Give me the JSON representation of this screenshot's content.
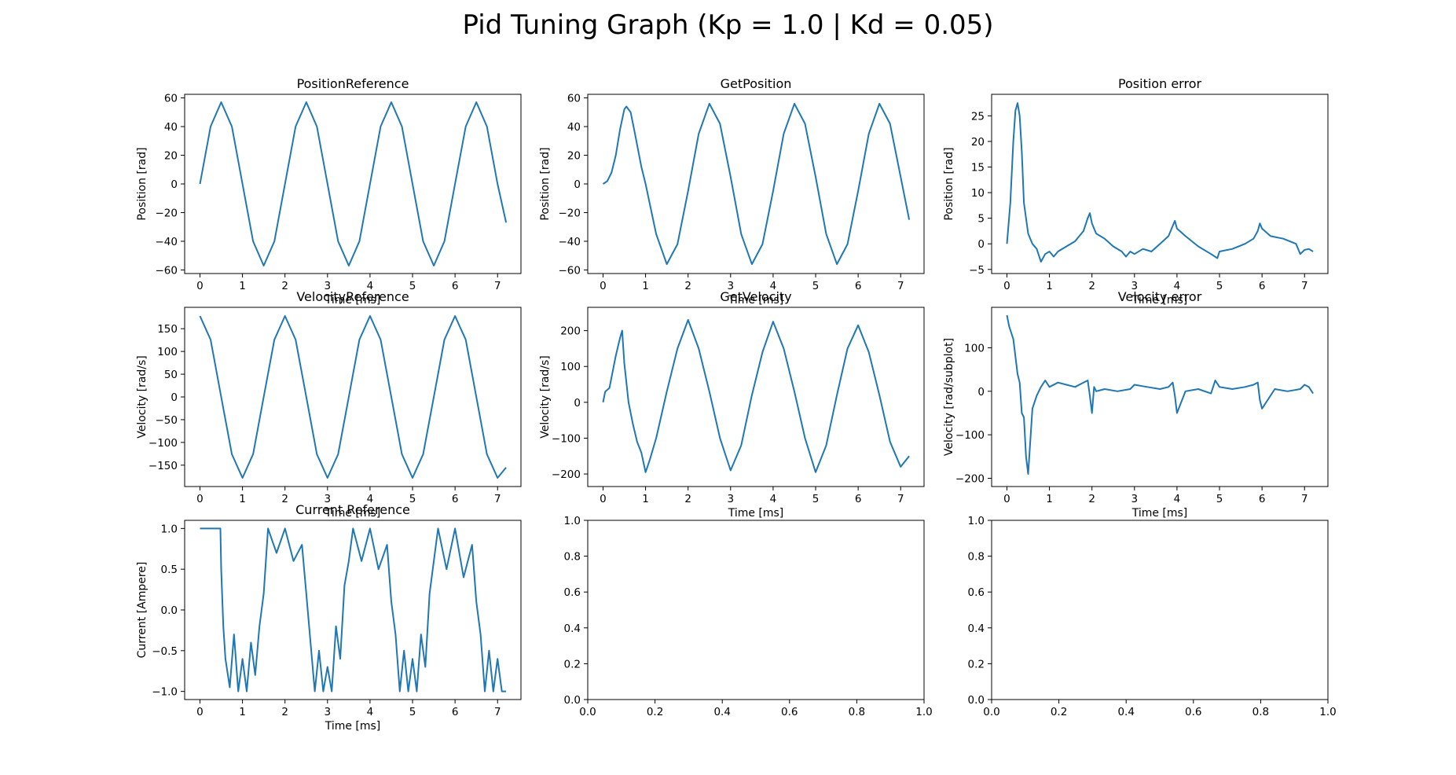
{
  "figure": {
    "title": "Pid Tuning Graph (Kp = 1.0 | Kd = 0.05)",
    "line_color": "#1f77b4"
  },
  "chart_data": [
    {
      "type": "line",
      "title": "PositionReference",
      "xlabel": "Time [ms]",
      "ylabel": "Position [rad]",
      "xlim": [
        -0.36,
        7.55
      ],
      "ylim": [
        -62.5,
        62.5
      ],
      "xticks": [
        0,
        1,
        2,
        3,
        4,
        5,
        6,
        7
      ],
      "yticks": [
        -60,
        -40,
        -20,
        0,
        20,
        40,
        60
      ],
      "series": [
        {
          "x": [
            0,
            0.25,
            0.5,
            0.75,
            1.0,
            1.25,
            1.5,
            1.75,
            2.0,
            2.25,
            2.5,
            2.75,
            3.0,
            3.25,
            3.5,
            3.75,
            4.0,
            4.25,
            4.5,
            4.75,
            5.0,
            5.25,
            5.5,
            5.75,
            6.0,
            6.25,
            6.5,
            6.75,
            7.0,
            7.2
          ],
          "y": [
            0,
            40,
            57,
            40,
            0,
            -40,
            -57,
            -40,
            0,
            40,
            57,
            40,
            0,
            -40,
            -57,
            -40,
            0,
            40,
            57,
            40,
            0,
            -40,
            -57,
            -40,
            0,
            40,
            57,
            40,
            0,
            -27
          ]
        }
      ]
    },
    {
      "type": "line",
      "title": "GetPosition",
      "xlabel": "Time [ms]",
      "ylabel": "Position [rad]",
      "xlim": [
        -0.36,
        7.55
      ],
      "ylim": [
        -62.5,
        62.5
      ],
      "xticks": [
        0,
        1,
        2,
        3,
        4,
        5,
        6,
        7
      ],
      "yticks": [
        -60,
        -40,
        -20,
        0,
        20,
        40,
        60
      ],
      "series": [
        {
          "x": [
            0,
            0.1,
            0.2,
            0.3,
            0.4,
            0.5,
            0.55,
            0.65,
            0.75,
            0.9,
            1.0,
            1.25,
            1.5,
            1.75,
            2.0,
            2.25,
            2.5,
            2.75,
            3.0,
            3.25,
            3.5,
            3.75,
            4.0,
            4.25,
            4.5,
            4.75,
            5.0,
            5.25,
            5.5,
            5.75,
            6.0,
            6.25,
            6.5,
            6.75,
            7.0,
            7.2
          ],
          "y": [
            0,
            2,
            8,
            20,
            38,
            52,
            54,
            50,
            35,
            12,
            0,
            -35,
            -56,
            -42,
            -5,
            35,
            56,
            42,
            5,
            -35,
            -56,
            -42,
            -5,
            35,
            56,
            42,
            5,
            -35,
            -56,
            -42,
            -5,
            35,
            56,
            42,
            5,
            -25
          ]
        }
      ]
    },
    {
      "type": "line",
      "title": "Position error",
      "xlabel": "Time [ms]",
      "ylabel": "Position [rad]",
      "xlim": [
        -0.36,
        7.55
      ],
      "ylim": [
        -5.8,
        29.2
      ],
      "xticks": [
        0,
        1,
        2,
        3,
        4,
        5,
        6,
        7
      ],
      "yticks": [
        -5,
        0,
        5,
        10,
        15,
        20,
        25
      ],
      "series": [
        {
          "x": [
            0,
            0.08,
            0.15,
            0.2,
            0.25,
            0.3,
            0.35,
            0.4,
            0.5,
            0.6,
            0.7,
            0.8,
            0.9,
            1.0,
            1.1,
            1.2,
            1.4,
            1.6,
            1.8,
            1.9,
            1.95,
            2.0,
            2.1,
            2.3,
            2.5,
            2.7,
            2.8,
            2.9,
            3.0,
            3.2,
            3.4,
            3.6,
            3.8,
            3.9,
            3.95,
            4.0,
            4.2,
            4.5,
            4.8,
            4.95,
            5.0,
            5.3,
            5.6,
            5.8,
            5.9,
            5.95,
            6.0,
            6.2,
            6.5,
            6.8,
            6.9,
            7.0,
            7.1,
            7.2
          ],
          "y": [
            0,
            8,
            20,
            26,
            27.5,
            25,
            18,
            8,
            2,
            0,
            -1,
            -3.5,
            -2,
            -1.5,
            -2.5,
            -1.5,
            -0.5,
            0.5,
            2.5,
            5,
            6,
            4,
            2,
            1,
            -0.5,
            -1.5,
            -2.5,
            -1.5,
            -2,
            -1,
            -1.5,
            0,
            1.5,
            3.5,
            4.5,
            3,
            1.5,
            -0.5,
            -2,
            -2.8,
            -1.5,
            -1,
            0,
            1,
            2.5,
            4,
            3,
            1.5,
            1,
            0,
            -2,
            -1.2,
            -1,
            -1.5
          ]
        }
      ]
    },
    {
      "type": "line",
      "title": "VelocityReference",
      "xlabel": "Time [ms]",
      "ylabel": "Velocity [rad/s]",
      "xlim": [
        -0.36,
        7.55
      ],
      "ylim": [
        -197,
        197
      ],
      "xticks": [
        0,
        1,
        2,
        3,
        4,
        5,
        6,
        7
      ],
      "yticks": [
        -150,
        -100,
        -50,
        0,
        50,
        100,
        150
      ],
      "series": [
        {
          "x": [
            0,
            0.25,
            0.5,
            0.75,
            1.0,
            1.25,
            1.5,
            1.75,
            2.0,
            2.25,
            2.5,
            2.75,
            3.0,
            3.25,
            3.5,
            3.75,
            4.0,
            4.25,
            4.5,
            4.75,
            5.0,
            5.25,
            5.5,
            5.75,
            6.0,
            6.25,
            6.5,
            6.75,
            7.0,
            7.2
          ],
          "y": [
            178,
            126,
            0,
            -126,
            -178,
            -126,
            0,
            126,
            178,
            126,
            0,
            -126,
            -178,
            -126,
            0,
            126,
            178,
            126,
            0,
            -126,
            -178,
            -126,
            0,
            126,
            178,
            126,
            0,
            -126,
            -178,
            -155
          ]
        }
      ]
    },
    {
      "type": "line",
      "title": "GetVelocity",
      "xlabel": "Time [ms]",
      "ylabel": "Velocity [rad/s]",
      "xlim": [
        -0.36,
        7.55
      ],
      "ylim": [
        -235,
        265
      ],
      "xticks": [
        0,
        1,
        2,
        3,
        4,
        5,
        6,
        7
      ],
      "yticks": [
        -200,
        -100,
        0,
        100,
        200
      ],
      "series": [
        {
          "x": [
            0,
            0.05,
            0.15,
            0.3,
            0.4,
            0.45,
            0.5,
            0.6,
            0.7,
            0.8,
            0.9,
            1.0,
            1.1,
            1.25,
            1.5,
            1.75,
            2.0,
            2.25,
            2.5,
            2.75,
            3.0,
            3.25,
            3.5,
            3.75,
            4.0,
            4.25,
            4.5,
            4.75,
            5.0,
            5.25,
            5.5,
            5.75,
            6.0,
            6.25,
            6.5,
            6.75,
            7.0,
            7.2
          ],
          "y": [
            0,
            30,
            40,
            130,
            180,
            200,
            110,
            0,
            -60,
            -110,
            -140,
            -195,
            -160,
            -100,
            30,
            150,
            230,
            150,
            30,
            -100,
            -190,
            -120,
            20,
            140,
            225,
            150,
            30,
            -100,
            -195,
            -120,
            20,
            150,
            215,
            140,
            20,
            -110,
            -180,
            -150
          ]
        }
      ]
    },
    {
      "type": "line",
      "title": "Velocity error",
      "xlabel": "Time [ms]",
      "ylabel": "Velocity [rad/subplot]",
      "xlim": [
        -0.36,
        7.55
      ],
      "ylim": [
        -219,
        193
      ],
      "xticks": [
        0,
        1,
        2,
        3,
        4,
        5,
        6,
        7
      ],
      "yticks": [
        -200,
        -100,
        0,
        100
      ],
      "series": [
        {
          "x": [
            0,
            0.05,
            0.15,
            0.25,
            0.3,
            0.35,
            0.4,
            0.45,
            0.5,
            0.6,
            0.7,
            0.8,
            0.9,
            1.0,
            1.2,
            1.4,
            1.6,
            1.9,
            1.95,
            2.0,
            2.05,
            2.1,
            2.3,
            2.6,
            2.9,
            3.0,
            3.3,
            3.6,
            3.8,
            3.9,
            3.95,
            4.0,
            4.2,
            4.5,
            4.8,
            4.9,
            5.0,
            5.3,
            5.6,
            5.8,
            5.9,
            5.95,
            6.0,
            6.3,
            6.6,
            6.9,
            7.0,
            7.1,
            7.2
          ],
          "y": [
            175,
            150,
            120,
            40,
            20,
            -50,
            -60,
            -150,
            -190,
            -40,
            -10,
            10,
            25,
            10,
            20,
            15,
            10,
            25,
            -10,
            -50,
            10,
            0,
            5,
            0,
            5,
            15,
            10,
            5,
            10,
            20,
            -10,
            -50,
            0,
            5,
            -5,
            25,
            10,
            5,
            10,
            15,
            20,
            -20,
            -40,
            5,
            0,
            5,
            15,
            10,
            -5
          ]
        }
      ]
    },
    {
      "type": "line",
      "title": "Current Reference",
      "xlabel": "Time [ms]",
      "ylabel": "Current [Ampere]",
      "xlim": [
        -0.36,
        7.55
      ],
      "ylim": [
        -1.1,
        1.1
      ],
      "xticks": [
        0,
        1,
        2,
        3,
        4,
        5,
        6,
        7
      ],
      "yticks": [
        -1.0,
        -0.5,
        0.0,
        0.5,
        1.0
      ],
      "series": [
        {
          "x": [
            0,
            0.48,
            0.5,
            0.55,
            0.6,
            0.7,
            0.8,
            0.9,
            1.0,
            1.1,
            1.2,
            1.3,
            1.4,
            1.5,
            1.6,
            1.8,
            2.0,
            2.2,
            2.4,
            2.5,
            2.6,
            2.7,
            2.8,
            2.9,
            3.0,
            3.1,
            3.2,
            3.3,
            3.4,
            3.5,
            3.6,
            3.8,
            4.0,
            4.2,
            4.4,
            4.5,
            4.6,
            4.7,
            4.8,
            4.9,
            5.0,
            5.1,
            5.2,
            5.3,
            5.4,
            5.5,
            5.6,
            5.8,
            6.0,
            6.2,
            6.4,
            6.5,
            6.6,
            6.7,
            6.8,
            6.9,
            7.0,
            7.1,
            7.2
          ],
          "y": [
            1.0,
            1.0,
            0.5,
            -0.2,
            -0.6,
            -0.95,
            -0.3,
            -1.0,
            -0.6,
            -1.0,
            -0.4,
            -0.8,
            -0.2,
            0.2,
            1.0,
            0.7,
            1.0,
            0.6,
            0.8,
            0.2,
            -0.4,
            -1.0,
            -0.5,
            -1.0,
            -0.7,
            -1.0,
            -0.2,
            -0.6,
            0.3,
            0.6,
            1.0,
            0.6,
            1.0,
            0.5,
            0.8,
            0.1,
            -0.3,
            -1.0,
            -0.5,
            -1.0,
            -0.6,
            -1.0,
            -0.3,
            -0.7,
            0.2,
            0.6,
            1.0,
            0.5,
            1.0,
            0.4,
            0.8,
            0.1,
            -0.3,
            -1.0,
            -0.5,
            -1.0,
            -0.6,
            -1.0,
            -1.0
          ]
        }
      ]
    },
    {
      "type": "line",
      "title": "",
      "xlabel": "",
      "ylabel": "",
      "xlim": [
        0,
        1
      ],
      "ylim": [
        0,
        1
      ],
      "xticks": [
        0.0,
        0.2,
        0.4,
        0.6,
        0.8,
        1.0
      ],
      "yticks": [
        0.0,
        0.2,
        0.4,
        0.6,
        0.8,
        1.0
      ],
      "series": []
    },
    {
      "type": "line",
      "title": "",
      "xlabel": "",
      "ylabel": "",
      "xlim": [
        0,
        1
      ],
      "ylim": [
        0,
        1
      ],
      "xticks": [
        0.0,
        0.2,
        0.4,
        0.6,
        0.8,
        1.0
      ],
      "yticks": [
        0.0,
        0.2,
        0.4,
        0.6,
        0.8,
        1.0
      ],
      "series": []
    }
  ]
}
